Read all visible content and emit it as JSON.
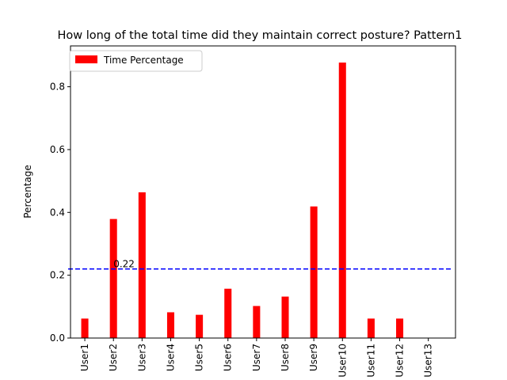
{
  "chart_data": {
    "type": "bar",
    "title": "How long of the total time did they maintain correct posture? Pattern1",
    "xlabel": "",
    "ylabel": "Percentage",
    "categories": [
      "User1",
      "User2",
      "User3",
      "User4",
      "User5",
      "User6",
      "User7",
      "User8",
      "User9",
      "User10",
      "User11",
      "User12",
      "User13"
    ],
    "series": [
      {
        "name": "Time Percentage",
        "color": "#ff0000",
        "values": [
          0.062,
          0.379,
          0.464,
          0.082,
          0.074,
          0.157,
          0.102,
          0.132,
          0.419,
          0.877,
          0.062,
          0.062,
          0.0
        ]
      }
    ],
    "ylim": [
      0,
      0.93
    ],
    "yticks": [
      "0.0",
      "0.2",
      "0.4",
      "0.6",
      "0.8"
    ],
    "reference_line": {
      "value": 0.22,
      "label": "0.22",
      "color": "#0000ff",
      "style": "dashed"
    },
    "legend": {
      "position": "top-left"
    },
    "grid": false
  }
}
